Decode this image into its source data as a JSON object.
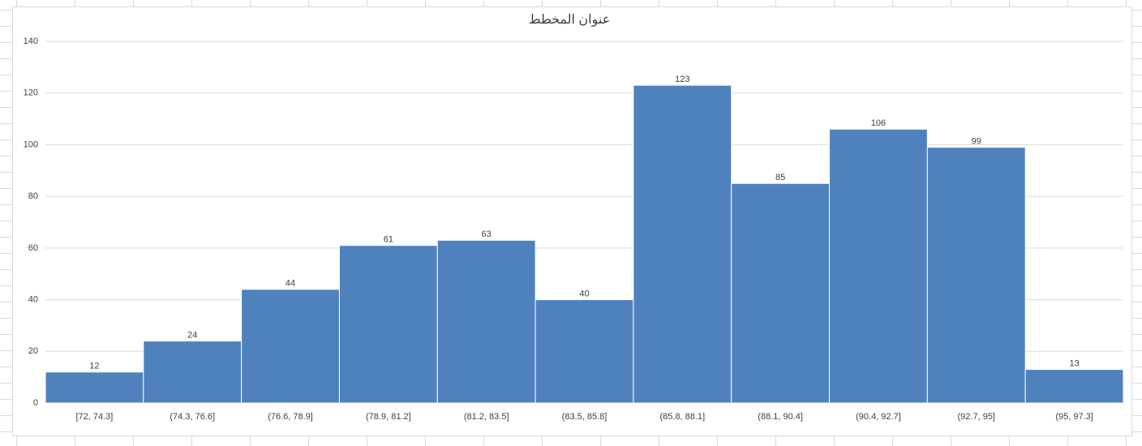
{
  "chart_data": {
    "type": "histogram",
    "title": "عنوان المخطط",
    "categories": [
      "[72, 74.3]",
      "(74.3, 76.6]",
      "(76.6, 78.9]",
      "(78.9, 81.2]",
      "(81.2, 83.5]",
      "(83.5, 85.8]",
      "(85.8, 88.1]",
      "(88.1, 90.4]",
      "(90.4, 92.7]",
      "(92.7, 95]",
      "(95, 97.3]"
    ],
    "values": [
      12,
      24,
      44,
      61,
      63,
      40,
      123,
      85,
      106,
      99,
      13
    ],
    "color": "#4f81bd",
    "ylim": [
      0,
      140
    ],
    "yticks": [
      0,
      20,
      40,
      60,
      80,
      100,
      120,
      140
    ],
    "grid": true
  }
}
